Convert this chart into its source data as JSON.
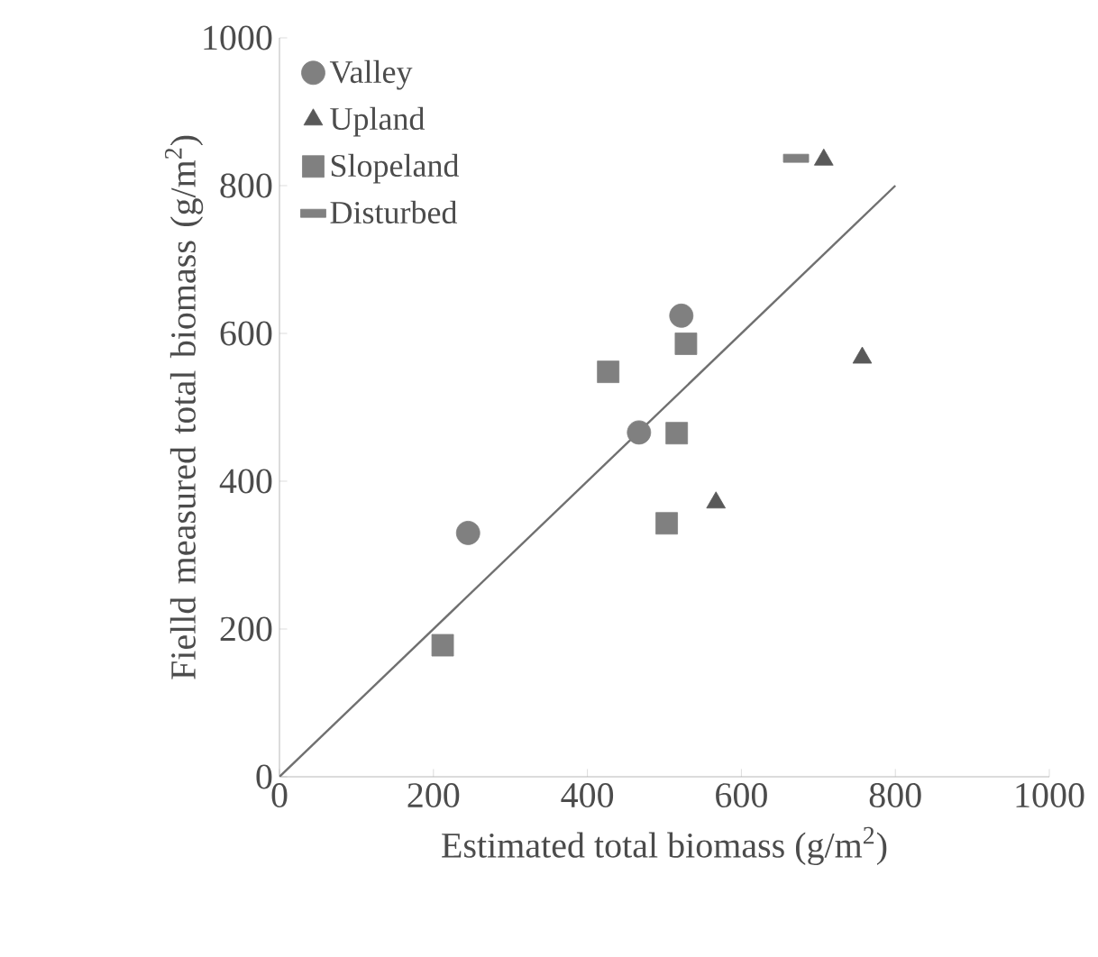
{
  "chart_data": {
    "type": "scatter",
    "xlabel": "Estimated total biomass (g/m$^{2}$)",
    "ylabel": "Fielld measured total biomass (g/m$^{2}$)",
    "xlim": [
      0,
      1000
    ],
    "ylim": [
      0,
      1000
    ],
    "xticks": [
      0,
      200,
      400,
      600,
      800,
      1000
    ],
    "yticks": [
      0,
      200,
      400,
      600,
      800,
      1000
    ],
    "grid": false,
    "legend": "top left",
    "series": [
      {
        "name": "Valley",
        "color": "#808080",
        "marker": "circle",
        "x": [
          245,
          467,
          522
        ],
        "values": [
          330,
          466,
          624
        ]
      },
      {
        "name": "Upland",
        "color": "#595959",
        "marker": "triangle",
        "x": [
          707,
          757,
          567
        ],
        "values": [
          835,
          567,
          371
        ]
      },
      {
        "name": "Slopeland",
        "color": "#808080",
        "marker": "square",
        "x": [
          212,
          427,
          528,
          516,
          503
        ],
        "values": [
          178,
          548,
          586,
          465,
          343
        ]
      },
      {
        "name": "Disturbed",
        "color": "#808080",
        "marker": "square",
        "x": [
          671
        ],
        "values": [
          837
        ]
      },
      {
        "type": "line",
        "color": "#707070",
        "marker": "none",
        "x": [
          0,
          800
        ],
        "values": [
          0,
          800
        ]
      }
    ]
  }
}
